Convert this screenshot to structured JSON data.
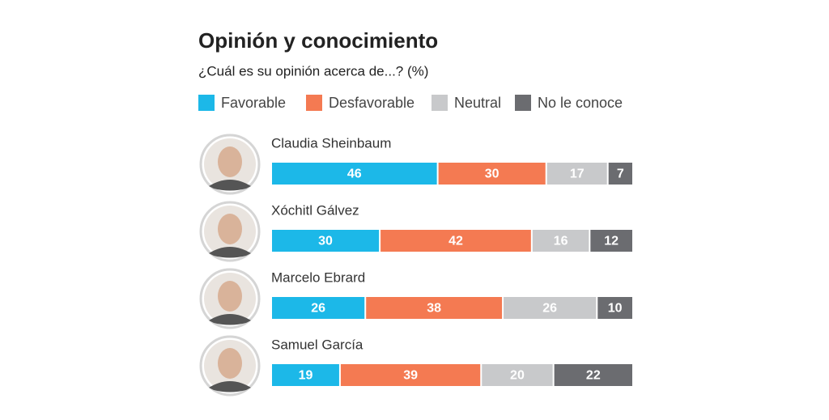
{
  "chart_data": {
    "type": "bar",
    "orientation": "horizontal",
    "stacked": true,
    "title": "Opinión y conocimiento",
    "subtitle": "¿Cuál es su opinión acerca de...? (%)",
    "categories": [
      "Claudia Sheinbaum",
      "Xóchitl Gálvez",
      "Marcelo Ebrard",
      "Samuel García"
    ],
    "series": [
      {
        "name": "Favorable",
        "color": "#1cb8e8",
        "values": [
          46,
          30,
          26,
          19
        ]
      },
      {
        "name": "Desfavorable",
        "color": "#f47a52",
        "values": [
          30,
          42,
          38,
          39
        ]
      },
      {
        "name": "Neutral",
        "color": "#c8c9cb",
        "values": [
          17,
          16,
          26,
          20
        ]
      },
      {
        "name": "No le conoce",
        "color": "#6b6c70",
        "values": [
          7,
          12,
          10,
          22
        ]
      }
    ]
  }
}
